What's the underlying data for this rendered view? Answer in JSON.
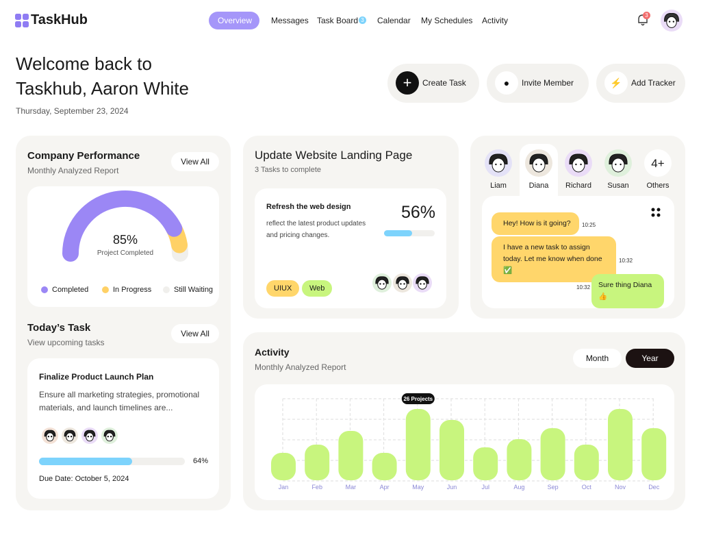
{
  "header": {
    "brand": "TaskHub",
    "nav": [
      {
        "label": "Overview",
        "active": true
      },
      {
        "label": "Messages",
        "active": false
      },
      {
        "label": "Task Board",
        "active": false,
        "badge": "3"
      },
      {
        "label": "Calendar",
        "active": false
      },
      {
        "label": "My Schedules",
        "active": false
      },
      {
        "label": "Activity",
        "active": false
      }
    ],
    "notifications": "3"
  },
  "welcome": {
    "line1": "Welcome back to",
    "line2": "Taskhub, Aaron White",
    "date": "Thursday, September 23, 2024"
  },
  "actions": [
    "Create Task",
    "Invite Member",
    "Add Tracker"
  ],
  "performance": {
    "title": "Company Performance",
    "subtitle": "Monthly Analyzed Report",
    "button": "View All",
    "center_value": {
      "value": 85,
      "label": "85%"
    },
    "center_caption": "Project Completed",
    "segments": [
      {
        "name": "Completed",
        "value": 85,
        "color": "#9b87f5"
      },
      {
        "name": "In Progress",
        "value": 10,
        "color": "#ffd166"
      },
      {
        "name": "Still Waiting",
        "value": 5,
        "color": "#f0efec"
      }
    ]
  },
  "today_task": {
    "title": "Today’s Task",
    "subtitle": "View upcoming tasks",
    "button": "View All",
    "task_title": "Finalize Product Launch Plan",
    "description": "Ensure all marketing strategies, promotional materials, and launch timelines are...",
    "progress": {
      "value": 64,
      "label": "64%"
    },
    "due": "Due Date: October 5, 2024"
  },
  "project": {
    "title": "Update Website Landing Page",
    "subtitle": "3 Tasks to complete",
    "task_title": "Refresh the web design",
    "description": "reflect the latest product updates and pricing changes.",
    "progress": {
      "value": 56,
      "label": "56%"
    },
    "tags": [
      "UIUX",
      "Web"
    ]
  },
  "team": {
    "members": [
      "Liam",
      "Diana",
      "Richard",
      "Susan"
    ],
    "others_count": "4+",
    "others_label": "Others"
  },
  "chat": {
    "messages": [
      {
        "text": "Hey! How is it going?",
        "time": "10:25",
        "side": "left"
      },
      {
        "text": "I have a new task to assign today. Let me know when done ✅",
        "time": "10:32",
        "side": "left"
      },
      {
        "text": "Sure thing Diana👍",
        "time": "10:32",
        "side": "right"
      }
    ]
  },
  "chart_data": {
    "type": "bar",
    "title": "Activity",
    "subtitle": "Monthly Analyzed Report",
    "toggle": [
      {
        "label": "Month",
        "active": false
      },
      {
        "label": "Year",
        "active": true
      }
    ],
    "categories": [
      "Jan",
      "Feb",
      "Mar",
      "Apr",
      "May",
      "Jun",
      "Jul",
      "Aug",
      "Sep",
      "Oct",
      "Nov",
      "Dec"
    ],
    "values": [
      10,
      13,
      18,
      10,
      26,
      22,
      12,
      15,
      19,
      13,
      26,
      19
    ],
    "value_labels": [
      null,
      null,
      null,
      null,
      "26 Projects",
      null,
      null,
      null,
      null,
      null,
      null,
      null
    ],
    "color": "#c8f57e",
    "grid": true
  }
}
